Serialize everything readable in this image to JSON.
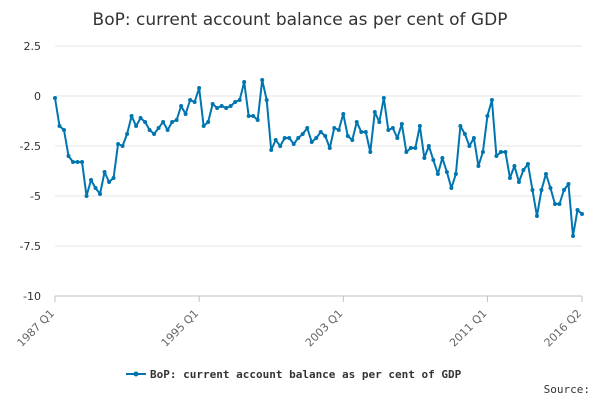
{
  "chart_data": {
    "type": "line",
    "title": "BoP: current account balance as per cent of GDP",
    "xlabel": "",
    "ylabel": "",
    "ylim": [
      -10,
      2.5
    ],
    "yticks": [
      "2.5",
      "0",
      "-2.5",
      "-5",
      "-7.5",
      "-10"
    ],
    "yticks_values": [
      2.5,
      0,
      -2.5,
      -5,
      -7.5,
      -10
    ],
    "xticks": [
      "1987 Q1",
      "1995 Q1",
      "2003 Q1",
      "2011 Q1",
      "2016 Q2"
    ],
    "xticks_index": [
      0,
      32,
      64,
      96,
      117
    ],
    "grid": "horizontal",
    "legend_position": "bottom",
    "series": [
      {
        "name": "BoP: current account balance as per cent of GDP",
        "color": "#0075b0",
        "values": [
          -0.1,
          -1.5,
          -1.7,
          -3.0,
          -3.3,
          -3.3,
          -3.3,
          -5.0,
          -4.2,
          -4.6,
          -4.9,
          -3.8,
          -4.3,
          -4.1,
          -2.4,
          -2.5,
          -1.9,
          -1.0,
          -1.5,
          -1.1,
          -1.3,
          -1.7,
          -1.9,
          -1.6,
          -1.3,
          -1.7,
          -1.3,
          -1.2,
          -0.5,
          -0.9,
          -0.2,
          -0.3,
          0.4,
          -1.5,
          -1.3,
          -0.4,
          -0.6,
          -0.5,
          -0.6,
          -0.5,
          -0.3,
          -0.2,
          0.7,
          -1.0,
          -1.0,
          -1.2,
          0.8,
          -0.2,
          -2.7,
          -2.2,
          -2.5,
          -2.1,
          -2.1,
          -2.4,
          -2.1,
          -1.9,
          -1.6,
          -2.3,
          -2.1,
          -1.8,
          -2.0,
          -2.6,
          -1.6,
          -1.7,
          -0.9,
          -2.0,
          -2.2,
          -1.3,
          -1.8,
          -1.8,
          -2.8,
          -0.8,
          -1.3,
          -0.1,
          -1.7,
          -1.6,
          -2.1,
          -1.4,
          -2.8,
          -2.6,
          -2.6,
          -1.5,
          -3.1,
          -2.5,
          -3.2,
          -3.9,
          -3.1,
          -3.8,
          -4.6,
          -3.9,
          -1.5,
          -1.9,
          -2.5,
          -2.1,
          -3.5,
          -2.8,
          -1.0,
          -0.2,
          -3.0,
          -2.8,
          -2.8,
          -4.1,
          -3.5,
          -4.3,
          -3.7,
          -3.4,
          -4.7,
          -6.0,
          -4.7,
          -3.9,
          -4.6,
          -5.4,
          -5.4,
          -4.7,
          -4.4,
          -7.0,
          -5.7,
          -5.9
        ]
      }
    ],
    "legend": [
      "BoP: current account balance as per cent of GDP"
    ]
  },
  "footer": {
    "source_label": "Source:"
  }
}
